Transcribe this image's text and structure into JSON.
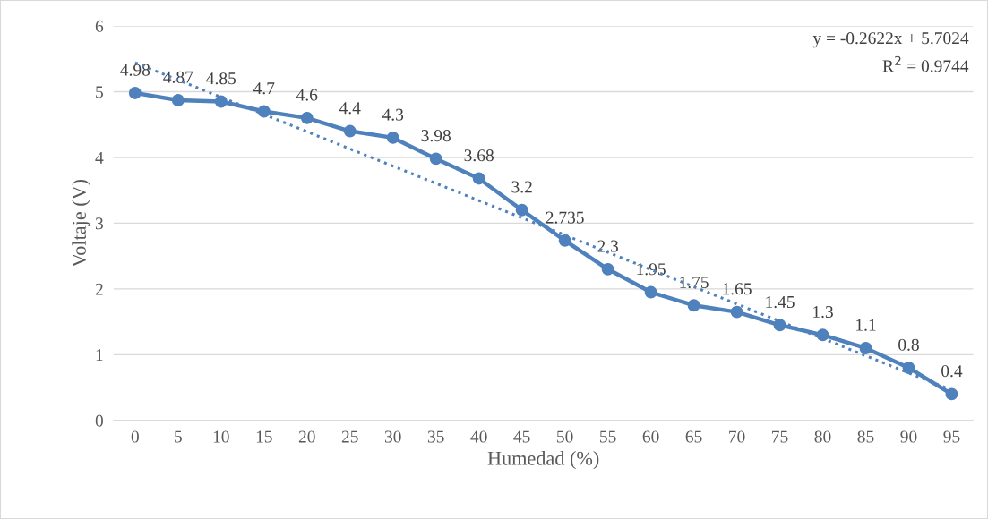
{
  "chart_data": {
    "type": "line",
    "xlabel": "Humedad (%)",
    "ylabel": "Voltaje (V)",
    "categories": [
      "0",
      "5",
      "10",
      "15",
      "20",
      "25",
      "30",
      "35",
      "40",
      "45",
      "50",
      "55",
      "60",
      "65",
      "70",
      "75",
      "80",
      "85",
      "90",
      "95"
    ],
    "series": [
      {
        "color": "#4f81bd",
        "marker": "circle",
        "line_style": "solid",
        "data_labels": true,
        "values": [
          4.98,
          4.87,
          4.85,
          4.7,
          4.6,
          4.4,
          4.3,
          3.98,
          3.68,
          3.2,
          2.735,
          2.3,
          1.95,
          1.75,
          1.65,
          1.45,
          1.3,
          1.1,
          0.8,
          0.4
        ]
      },
      {
        "type": "line",
        "color": "#4f81bd",
        "marker": "none",
        "line_style": "dotted",
        "x": [
          "0",
          "95"
        ],
        "values": [
          5.44,
          0.46
        ]
      }
    ],
    "annotations": [
      "y = -0.2622x + 5.7024",
      "R$^{2}$ = 0.9744"
    ],
    "ylim": [
      0,
      6
    ],
    "yticks": [
      0,
      1,
      2,
      3,
      4,
      5,
      6
    ],
    "grid": "y",
    "legend": false
  }
}
